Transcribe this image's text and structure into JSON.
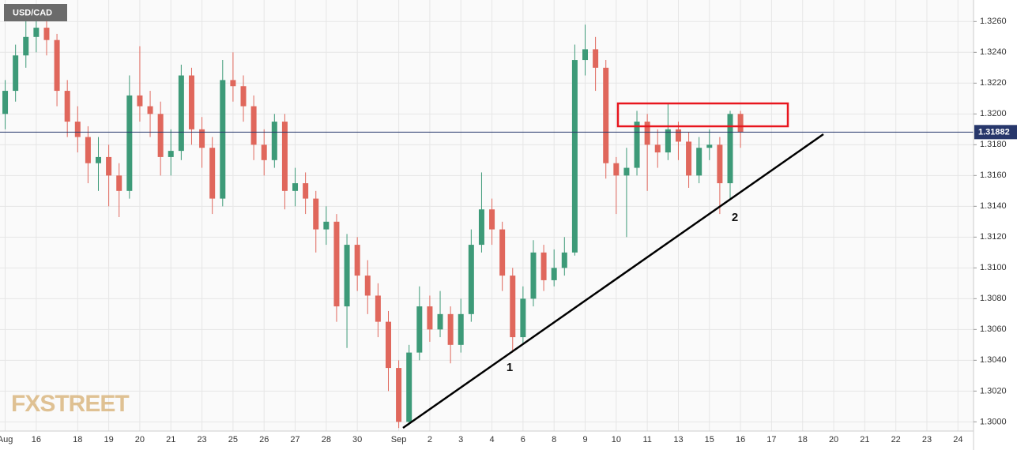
{
  "chart_data": {
    "type": "candlestick",
    "title": "USD/CAD",
    "watermark": "FXSTREET",
    "categories": [
      "Aug",
      null,
      null,
      "16",
      null,
      null,
      null,
      "18",
      null,
      null,
      "19",
      null,
      null,
      "20",
      null,
      null,
      "21",
      null,
      null,
      "23",
      null,
      null,
      "25",
      null,
      null,
      "26",
      null,
      null,
      "27",
      null,
      null,
      "28",
      null,
      null,
      "30",
      null,
      null,
      null,
      "Sep",
      null,
      null,
      "2",
      null,
      null,
      "3",
      null,
      null,
      "4",
      null,
      null,
      "6",
      null,
      null,
      "8",
      null,
      null,
      "9",
      null,
      null,
      "10",
      null,
      null,
      "11",
      null,
      null,
      "13",
      null,
      null,
      "15",
      null,
      null,
      "16",
      null,
      null,
      "17",
      null,
      null,
      "18",
      null,
      null,
      "20",
      null,
      null,
      "21",
      null,
      null,
      "22",
      null,
      null,
      "23",
      null,
      null,
      "24",
      null
    ],
    "open": [
      1.32,
      1.3215,
      1.3238,
      1.325,
      1.3256,
      1.3248,
      1.3215,
      1.3195,
      1.3185,
      1.3168,
      1.3172,
      1.316,
      1.315,
      1.3212,
      1.3205,
      1.32,
      1.3172,
      1.3176,
      1.3225,
      1.319,
      1.3178,
      1.3145,
      1.3222,
      1.3218,
      1.3205,
      1.318,
      1.317,
      1.3195,
      1.315,
      1.3155,
      1.3145,
      1.3125,
      1.313,
      1.3075,
      1.3115,
      1.3095,
      1.3082,
      1.3065,
      1.3035,
      1.3,
      1.3045,
      1.3075,
      1.306,
      1.307,
      1.305,
      1.307,
      1.3115,
      1.3138,
      1.3125,
      1.3095,
      1.3055,
      1.308,
      1.311,
      1.3092,
      1.31,
      1.311,
      1.3235,
      1.3242,
      1.323,
      1.3168,
      1.316,
      1.3165,
      1.3195,
      1.318,
      1.3175,
      1.319,
      1.3182,
      1.316,
      1.3178,
      1.318,
      1.3155,
      1.32,
      null,
      null,
      null,
      null,
      null,
      null,
      null,
      null,
      null,
      null,
      null,
      null,
      null,
      null,
      null,
      null,
      null,
      null,
      null,
      null,
      null,
      null
    ],
    "high": [
      1.3222,
      1.3245,
      1.3262,
      1.3268,
      1.3262,
      1.3252,
      1.3222,
      1.3205,
      1.3192,
      1.3185,
      1.318,
      1.3168,
      1.3225,
      1.3244,
      1.3215,
      1.3208,
      1.319,
      1.3232,
      1.323,
      1.3198,
      1.3185,
      1.3235,
      1.324,
      1.3225,
      1.3212,
      1.319,
      1.32,
      1.32,
      1.3165,
      1.3162,
      1.315,
      1.314,
      1.3135,
      1.3122,
      1.312,
      1.3105,
      1.309,
      1.3072,
      1.304,
      1.305,
      1.3088,
      1.3082,
      1.3085,
      1.3075,
      1.308,
      1.3125,
      1.3162,
      1.3145,
      1.313,
      1.31,
      1.3088,
      1.3118,
      1.3115,
      1.3112,
      1.312,
      1.3245,
      1.3258,
      1.325,
      1.3235,
      1.3172,
      1.3178,
      1.3202,
      1.32,
      1.319,
      1.3207,
      1.3195,
      1.3188,
      1.3185,
      1.319,
      1.3185,
      1.3202,
      1.3202,
      null,
      null,
      null,
      null,
      null,
      null,
      null,
      null,
      null,
      null,
      null,
      null,
      null,
      null,
      null,
      null,
      null,
      null,
      null,
      null,
      null,
      null
    ],
    "low": [
      1.319,
      1.3208,
      1.323,
      1.324,
      1.3238,
      1.3205,
      1.3185,
      1.3175,
      1.3155,
      1.315,
      1.314,
      1.3133,
      1.3145,
      1.3195,
      1.3185,
      1.316,
      1.316,
      1.317,
      1.318,
      1.3165,
      1.3135,
      1.314,
      1.3208,
      1.3195,
      1.317,
      1.316,
      1.3165,
      1.3138,
      1.314,
      1.3135,
      1.311,
      1.3115,
      1.3065,
      1.3048,
      1.3085,
      1.307,
      1.3055,
      1.302,
      1.2996,
      1.2998,
      1.304,
      1.3052,
      1.3055,
      1.3038,
      1.3045,
      1.3065,
      1.311,
      1.3115,
      1.3085,
      1.3045,
      1.305,
      1.3075,
      1.3085,
      1.3088,
      1.3095,
      1.3108,
      1.3225,
      1.3215,
      1.3158,
      1.3135,
      1.312,
      1.316,
      1.315,
      1.3165,
      1.317,
      1.317,
      1.3152,
      1.3155,
      1.317,
      1.3135,
      1.3145,
      1.3178,
      null,
      null,
      null,
      null,
      null,
      null,
      null,
      null,
      null,
      null,
      null,
      null,
      null,
      null,
      null,
      null,
      null,
      null,
      null,
      null,
      null,
      null
    ],
    "close": [
      1.3215,
      1.3238,
      1.325,
      1.3256,
      1.3248,
      1.3215,
      1.3195,
      1.3185,
      1.3168,
      1.3172,
      1.316,
      1.315,
      1.3212,
      1.3205,
      1.32,
      1.3172,
      1.3176,
      1.3225,
      1.319,
      1.3178,
      1.3145,
      1.3222,
      1.3218,
      1.3205,
      1.318,
      1.317,
      1.3195,
      1.315,
      1.3155,
      1.3145,
      1.3125,
      1.313,
      1.3075,
      1.3115,
      1.3095,
      1.3082,
      1.3065,
      1.3035,
      1.3,
      1.3045,
      1.3075,
      1.306,
      1.307,
      1.305,
      1.307,
      1.3115,
      1.3138,
      1.3125,
      1.3095,
      1.3055,
      1.308,
      1.311,
      1.3092,
      1.31,
      1.311,
      1.3235,
      1.3242,
      1.323,
      1.3168,
      1.316,
      1.3165,
      1.3195,
      1.318,
      1.3175,
      1.319,
      1.3182,
      1.316,
      1.3178,
      1.318,
      1.3155,
      1.32,
      1.31882,
      null,
      null,
      null,
      null,
      null,
      null,
      null,
      null,
      null,
      null,
      null,
      null,
      null,
      null,
      null,
      null,
      null,
      null,
      null,
      null,
      null,
      null
    ],
    "up_color": "#3d9a78",
    "down_color": "#e0675c",
    "last_price": 1.31882,
    "last_price_color": "#27376b",
    "ylim": [
      1.2993,
      1.3274
    ],
    "yticks": [
      {
        "value": 1.3,
        "label": "1.3000"
      },
      {
        "value": 1.302,
        "label": "1.3020"
      },
      {
        "value": 1.304,
        "label": "1.3040"
      },
      {
        "value": 1.306,
        "label": "1.3060"
      },
      {
        "value": 1.308,
        "label": "1.3080"
      },
      {
        "value": 1.31,
        "label": "1.3100"
      },
      {
        "value": 1.312,
        "label": "1.3120"
      },
      {
        "value": 1.314,
        "label": "1.3140"
      },
      {
        "value": 1.316,
        "label": "1.3160"
      },
      {
        "value": 1.318,
        "label": "1.3180"
      },
      {
        "value": 1.32,
        "label": "1.3200"
      },
      {
        "value": 1.322,
        "label": "1.3220"
      },
      {
        "value": 1.324,
        "label": "1.3240"
      },
      {
        "value": 1.326,
        "label": "1.3260"
      }
    ],
    "grid": true,
    "annotations": [
      "1",
      "2"
    ]
  }
}
